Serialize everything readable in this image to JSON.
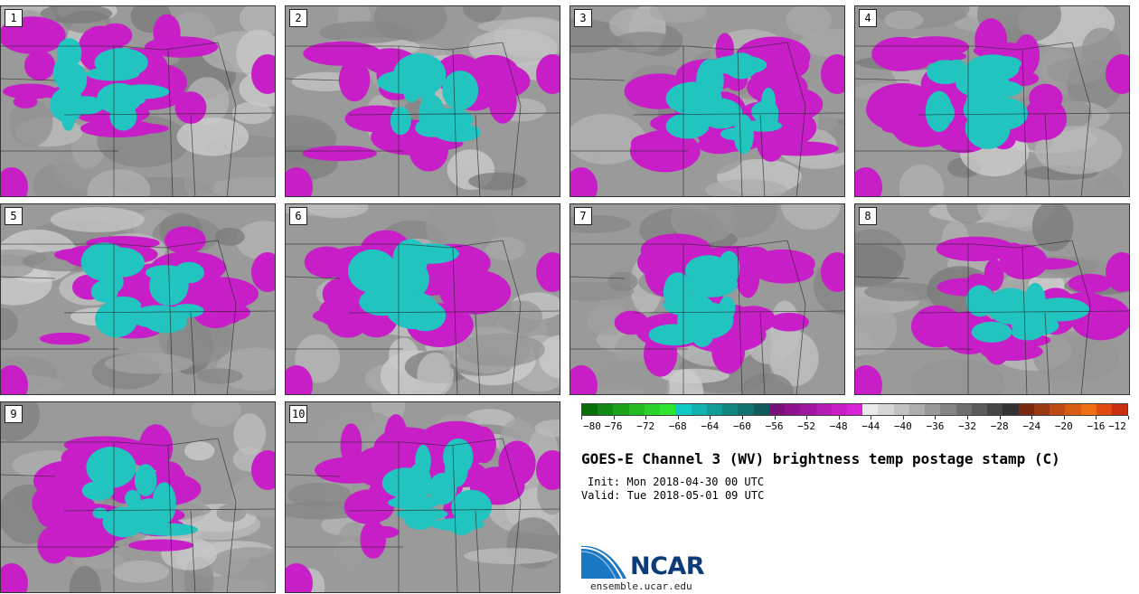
{
  "panels": [
    {
      "label": "1"
    },
    {
      "label": "2"
    },
    {
      "label": "3"
    },
    {
      "label": "4"
    },
    {
      "label": "5"
    },
    {
      "label": "6"
    },
    {
      "label": "7"
    },
    {
      "label": "8"
    },
    {
      "label": "9"
    },
    {
      "label": "10"
    }
  ],
  "colorbar": {
    "colors": [
      "#0a6e0a",
      "#138a13",
      "#1ca31c",
      "#22bb22",
      "#29d229",
      "#2ee62e",
      "#10c9c3",
      "#10b3ad",
      "#109c97",
      "#108683",
      "#10716e",
      "#105c5a",
      "#7a0f7a",
      "#8e128e",
      "#a116a1",
      "#b41ab4",
      "#c71ec7",
      "#da22da",
      "#e9e9e9",
      "#d6d6d6",
      "#c2c2c2",
      "#adadad",
      "#989898",
      "#838383",
      "#6e6e6e",
      "#5a5a5a",
      "#464646",
      "#333333",
      "#7a2a10",
      "#9b3a12",
      "#bd4b14",
      "#d65c14",
      "#ee6e14",
      "#e04a10",
      "#c83010"
    ],
    "tick_labels": [
      "−80",
      "−76",
      "−72",
      "−68",
      "−64",
      "−60",
      "−56",
      "−52",
      "−48",
      "−44",
      "−40",
      "−36",
      "−32",
      "−28",
      "−24",
      "−20",
      "−16",
      "−12"
    ]
  },
  "title": "GOES-E Channel 3 (WV) brightness temp postage stamp (C)",
  "init": "Init: Mon 2018-04-30 00 UTC",
  "valid": "Valid: Tue 2018-05-01 09 UTC",
  "logo": {
    "text": "NCAR",
    "url": "ensemble.ucar.edu",
    "brand_color": "#0b3b78",
    "accent_color": "#1a78c2"
  },
  "palette": {
    "cold_cloud": "#22c4c0",
    "cloud_magenta": "#c81ec8",
    "clear_gray": "#9a9a9a",
    "border": "#222222"
  }
}
